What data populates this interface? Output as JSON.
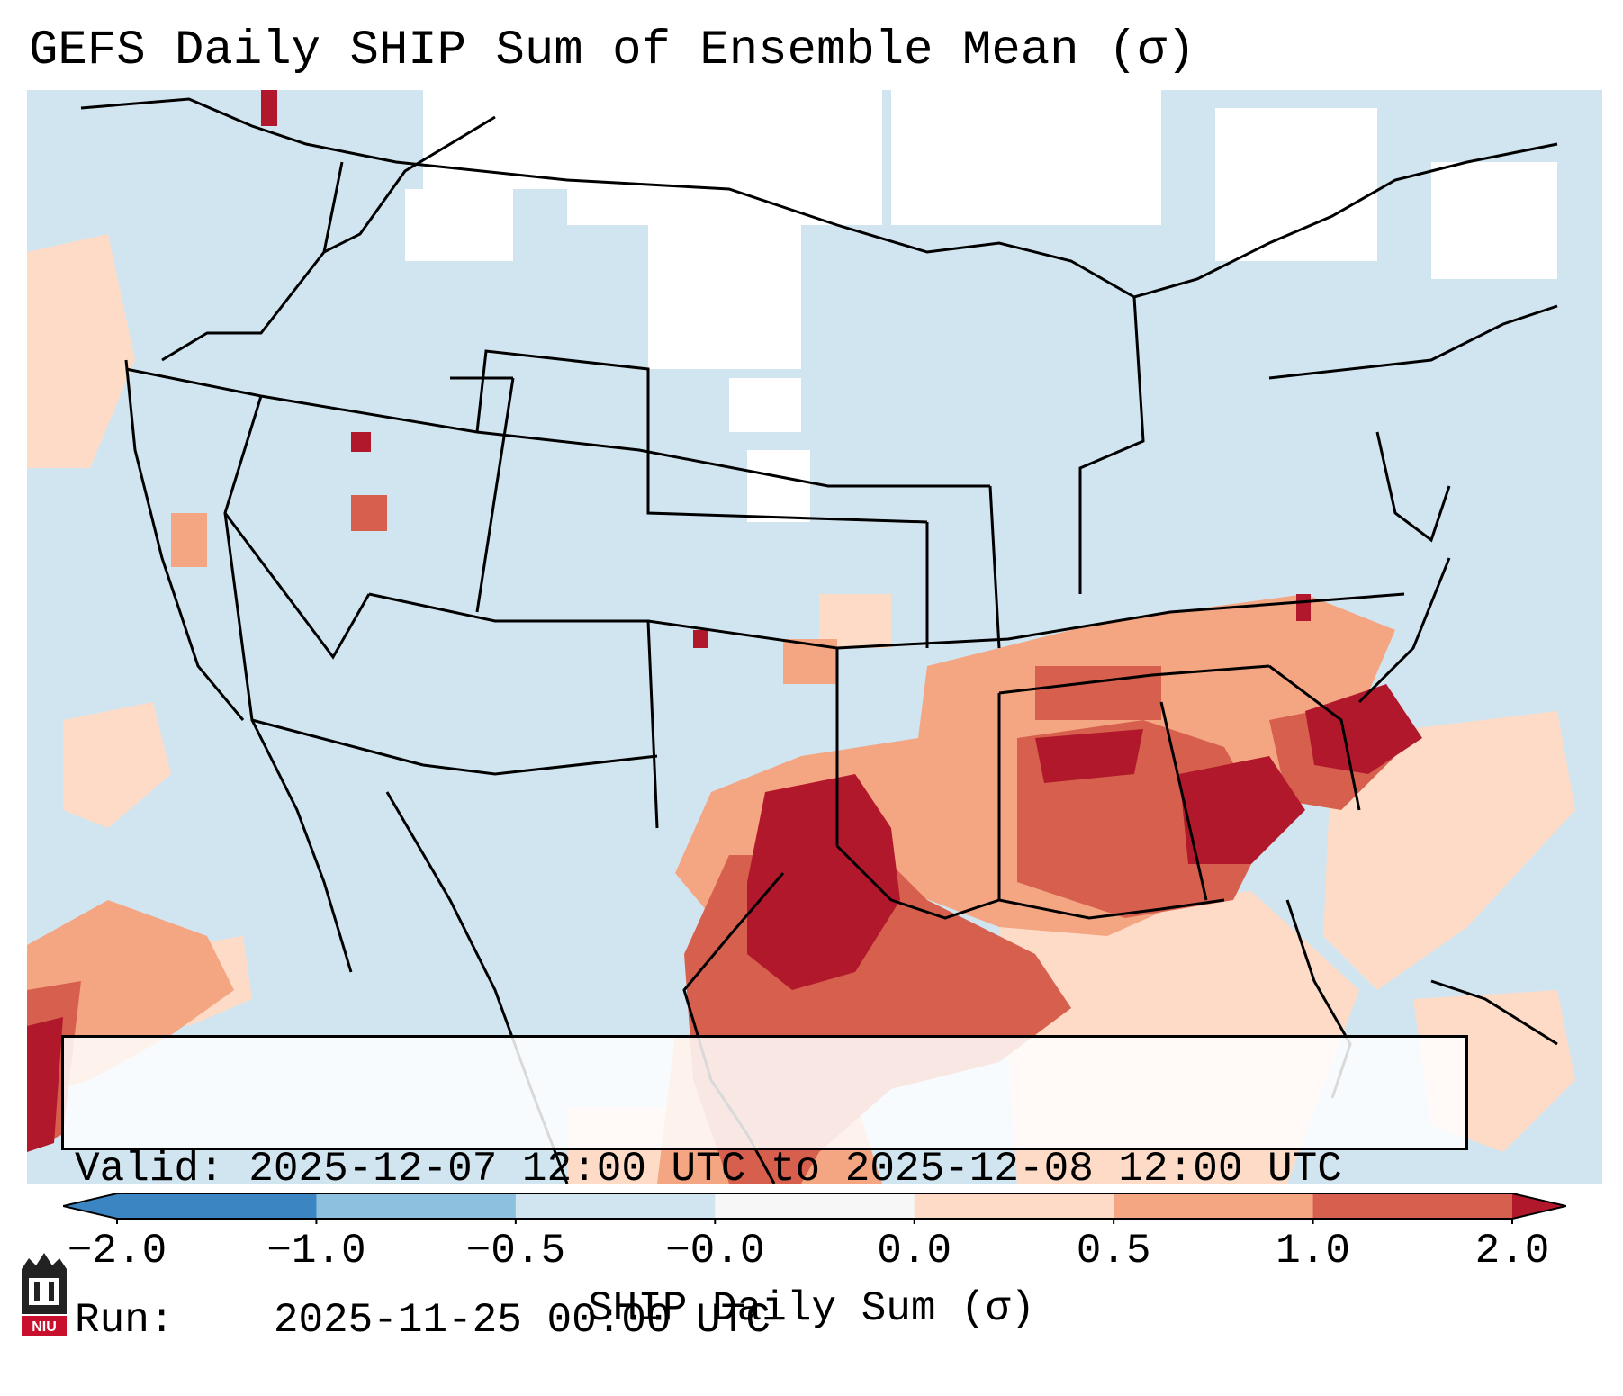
{
  "title": "GEFS Daily SHIP Sum of Ensemble Mean (σ)",
  "info": {
    "valid_label": "Valid:",
    "valid_value": "2025-12-07 12:00 UTC to 2025-12-08 12:00 UTC",
    "run_label": "Run:",
    "run_value": "2025-11-25 00:00 UTC"
  },
  "colorbar": {
    "label": "SHIP Daily Sum (σ)",
    "ticks": [
      "−2.0",
      "−1.0",
      "−0.5",
      "−0.0",
      "0.0",
      "0.5",
      "1.0",
      "2.0"
    ],
    "colors": [
      "#3b86c2",
      "#8dbfdf",
      "#d1e5f0",
      "#f7f7f7",
      "#fddbc7",
      "#f4a582",
      "#d6604d",
      "#b2182b"
    ]
  },
  "logo": {
    "text": "NIU"
  }
}
